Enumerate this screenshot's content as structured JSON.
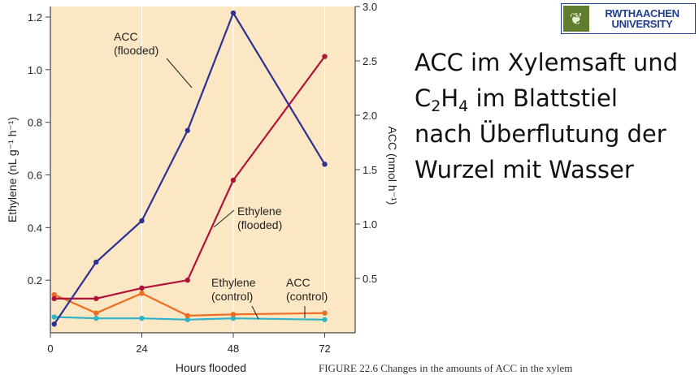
{
  "slide": {
    "text_lines": [
      {
        "parts": [
          {
            "t": "ACC im Xylemsaft und"
          }
        ]
      },
      {
        "parts": [
          {
            "t": "C"
          },
          {
            "t": "2",
            "sub": true
          },
          {
            "t": "H"
          },
          {
            "t": "4",
            "sub": true
          },
          {
            "t": " im Blattstiel"
          }
        ]
      },
      {
        "parts": [
          {
            "t": "nach Überflutung der"
          }
        ]
      },
      {
        "parts": [
          {
            "t": "Wurzel mit Wasser"
          }
        ]
      }
    ],
    "logo": {
      "line1": "RWTHAACHEN",
      "line2": "UNIVERSITY",
      "icon": "leaf-emblem-icon"
    },
    "caption": "FIGURE 22.6   Changes in the amounts of ACC in the xylem"
  },
  "chart_data": {
    "type": "line",
    "xlabel": "Hours flooded",
    "ylabel": "Ethylene (nL g⁻¹ h⁻¹)",
    "y2label": "ACC (nmol h⁻¹)",
    "xlim": [
      0,
      80
    ],
    "ylim": [
      0,
      1.24
    ],
    "y2lim": [
      0,
      3.0
    ],
    "xticks": [
      0,
      24,
      48,
      72
    ],
    "yticks": [
      0.2,
      0.4,
      0.6,
      0.8,
      1.0,
      1.2
    ],
    "y2ticks": [
      0.5,
      1.0,
      1.5,
      2.0,
      2.5,
      3.0
    ],
    "grid": "vertical",
    "background": "#fbe7c4",
    "series": [
      {
        "name": "ACC (flooded)",
        "axis": "right",
        "color": "#2e3192",
        "x": [
          1,
          12,
          24,
          36,
          48,
          72
        ],
        "y": [
          0.08,
          0.65,
          1.03,
          1.86,
          2.94,
          1.55
        ],
        "label_lines": [
          "ACC",
          "(flooded)"
        ]
      },
      {
        "name": "Ethylene (flooded)",
        "axis": "left",
        "color": "#b0123a",
        "x": [
          1,
          12,
          24,
          36,
          48,
          72
        ],
        "y": [
          0.13,
          0.13,
          0.17,
          0.2,
          0.58,
          1.05
        ],
        "label_lines": [
          "Ethylene",
          "(flooded)"
        ]
      },
      {
        "name": "Ethylene (control)",
        "axis": "left",
        "color": "#ef6c21",
        "x": [
          1,
          12,
          24,
          36,
          48,
          72
        ],
        "y": [
          0.145,
          0.075,
          0.15,
          0.065,
          0.07,
          0.075
        ],
        "label_lines": [
          "Ethylene",
          "(control)"
        ]
      },
      {
        "name": "ACC (control)",
        "axis": "left",
        "color": "#2fb3c6",
        "x": [
          1,
          12,
          24,
          36,
          48,
          72
        ],
        "y": [
          0.06,
          0.055,
          0.055,
          0.05,
          0.055,
          0.05
        ],
        "label_lines": [
          "ACC",
          "(control)"
        ]
      }
    ],
    "x_tick_labels": [
      "0",
      "24",
      "48",
      "72"
    ],
    "y_tick_labels": [
      "0.2",
      "0.4",
      "0.6",
      "0.8",
      "1.0",
      "1.2"
    ],
    "y2_tick_labels": [
      "0.5",
      "1.0",
      "1.5",
      "2.0",
      "2.5",
      "3.0"
    ]
  }
}
